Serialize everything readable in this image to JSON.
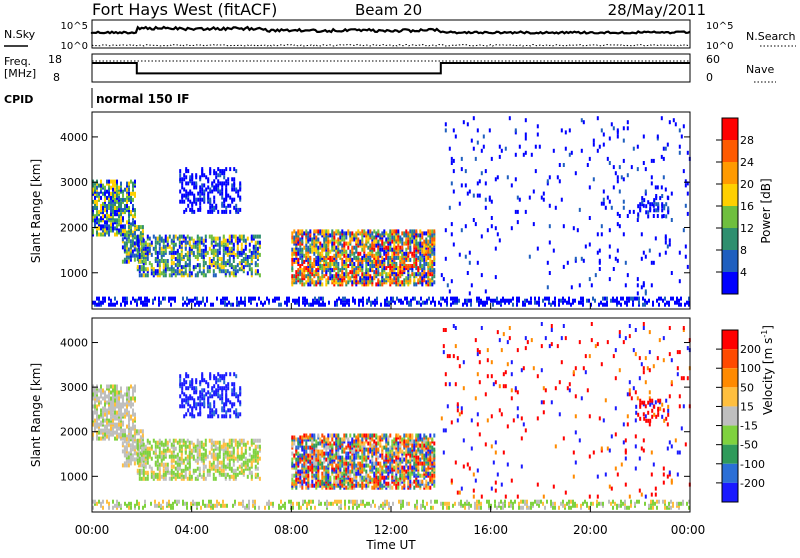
{
  "header": {
    "site": "Fort Hays West (fitACF)",
    "beam": "Beam 20",
    "date": "28/May/2011"
  },
  "noise_panel": {
    "left_label": "N.Sky",
    "left_ticks": [
      "10^5",
      "10^0"
    ],
    "right_label": "N.Search",
    "right_ticks": [
      "10^5",
      "10^0"
    ]
  },
  "freq_panel": {
    "left_label_1": "Freq.",
    "left_label_2": "[MHz]",
    "left_ticks": [
      "18",
      "8"
    ],
    "left_range": [
      8,
      18
    ],
    "right_label": "Nave",
    "right_ticks": [
      "60",
      "0"
    ],
    "right_range": [
      0,
      60
    ]
  },
  "cpid_panel": {
    "label": "CPID",
    "value": "normal 150 IF"
  },
  "chart_data": [
    {
      "type": "heatmap",
      "name": "Power",
      "ylabel": "Slant Range [km]",
      "xlabel": "",
      "y_ticks": [
        "1000",
        "2000",
        "3000",
        "4000"
      ],
      "ylim": [
        200,
        4550
      ],
      "colorbar_label": "Power [dB]",
      "colorbar_ticks": [
        "4",
        "8",
        "12",
        "16",
        "20",
        "24",
        "28"
      ],
      "colorbar_colors": [
        "#0000ff",
        "#1f5fbf",
        "#2f8f6f",
        "#6fbf3f",
        "#ffd000",
        "#ff9a00",
        "#ff5a00",
        "#ff0000"
      ]
    },
    {
      "type": "heatmap",
      "name": "Velocity",
      "ylabel": "Slant Range [km]",
      "xlabel": "Time UT",
      "y_ticks": [
        "1000",
        "2000",
        "3000",
        "4000"
      ],
      "ylim": [
        200,
        4550
      ],
      "x_ticks": [
        "00:00",
        "04:00",
        "08:00",
        "12:00",
        "16:00",
        "20:00",
        "00:00"
      ],
      "colorbar_label": "Velocity [m s",
      "colorbar_label_sup": "-1",
      "colorbar_label_end": "]",
      "colorbar_ticks": [
        "200",
        "100",
        "50",
        "15",
        "-15",
        "-50",
        "-100",
        "-200"
      ],
      "colorbar_colors": [
        "#1a1aff",
        "#2b6fd6",
        "#2f9a5a",
        "#7fd23f",
        "#bfbfbf",
        "#ffbf3f",
        "#ff8a00",
        "#ff4a00",
        "#ff0000"
      ]
    }
  ],
  "time_axis": {
    "hours": [
      0,
      4,
      8,
      12,
      16,
      20,
      24
    ],
    "xlim_hours": [
      0,
      24
    ]
  },
  "frequency_series": {
    "x_hours": [
      0,
      1.8,
      1.8,
      14,
      14,
      24
    ],
    "freq_mhz": [
      15.5,
      15.5,
      10.3,
      10.3,
      15.5,
      15.5
    ]
  }
}
